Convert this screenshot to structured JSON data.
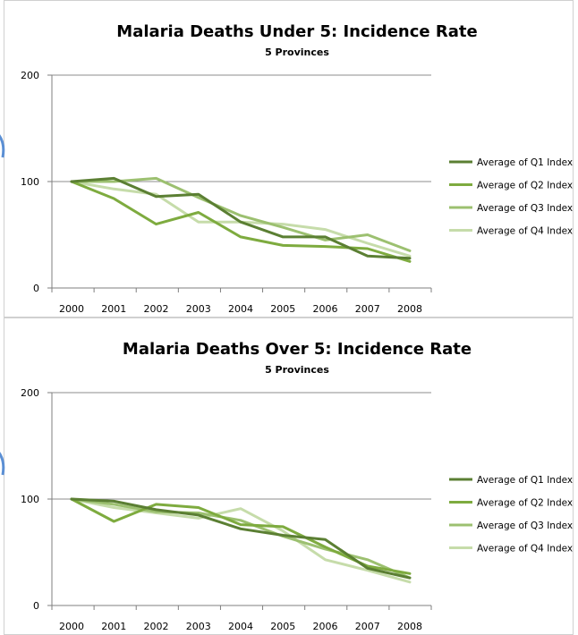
{
  "colors": {
    "series": [
      "#5b7f33",
      "#7eab3f",
      "#9cc070",
      "#c6dcaa"
    ],
    "axis": "#7f7f7f",
    "grid": "#8c8c8c",
    "panel_border": "#d0d0d0",
    "decoration": "#5b8fd4"
  },
  "chart_data": [
    {
      "type": "line",
      "title": "Malaria Deaths Under 5: Incidence Rate",
      "subtitle": "5 Provinces",
      "x": [
        "2000",
        "2001",
        "2002",
        "2003",
        "2004",
        "2005",
        "2006",
        "2007",
        "2008"
      ],
      "ylim": [
        0,
        200
      ],
      "yticks": [
        "0",
        "100",
        "200"
      ],
      "grid": "horizontal",
      "legend_position": "right",
      "series": [
        {
          "name": "Average of Q1 Index",
          "values": [
            100,
            103,
            86,
            88,
            62,
            48,
            48,
            30,
            28
          ]
        },
        {
          "name": "Average of Q2 Index",
          "values": [
            100,
            84,
            60,
            71,
            48,
            40,
            39,
            37,
            25
          ]
        },
        {
          "name": "Average of Q3 Index",
          "values": [
            100,
            100,
            103,
            85,
            68,
            57,
            45,
            50,
            35
          ]
        },
        {
          "name": "Average of Q4 Index",
          "values": [
            100,
            93,
            88,
            62,
            62,
            60,
            55,
            42,
            30
          ]
        }
      ]
    },
    {
      "type": "line",
      "title": "Malaria Deaths Over 5: Incidence Rate",
      "subtitle": "5 Provinces",
      "x": [
        "2000",
        "2001",
        "2002",
        "2003",
        "2004",
        "2005",
        "2006",
        "2007",
        "2008"
      ],
      "ylim": [
        0,
        200
      ],
      "yticks": [
        "0",
        "100",
        "200"
      ],
      "grid": "horizontal",
      "legend_position": "right",
      "series": [
        {
          "name": "Average of Q1 Index",
          "values": [
            100,
            98,
            90,
            85,
            72,
            66,
            62,
            35,
            26
          ]
        },
        {
          "name": "Average of Q2 Index",
          "values": [
            100,
            79,
            95,
            92,
            76,
            74,
            55,
            37,
            30
          ]
        },
        {
          "name": "Average of Q3 Index",
          "values": [
            100,
            95,
            88,
            87,
            80,
            65,
            53,
            43,
            26
          ]
        },
        {
          "name": "Average of Q4 Index",
          "values": [
            100,
            92,
            87,
            82,
            91,
            70,
            43,
            33,
            22
          ]
        }
      ]
    }
  ]
}
